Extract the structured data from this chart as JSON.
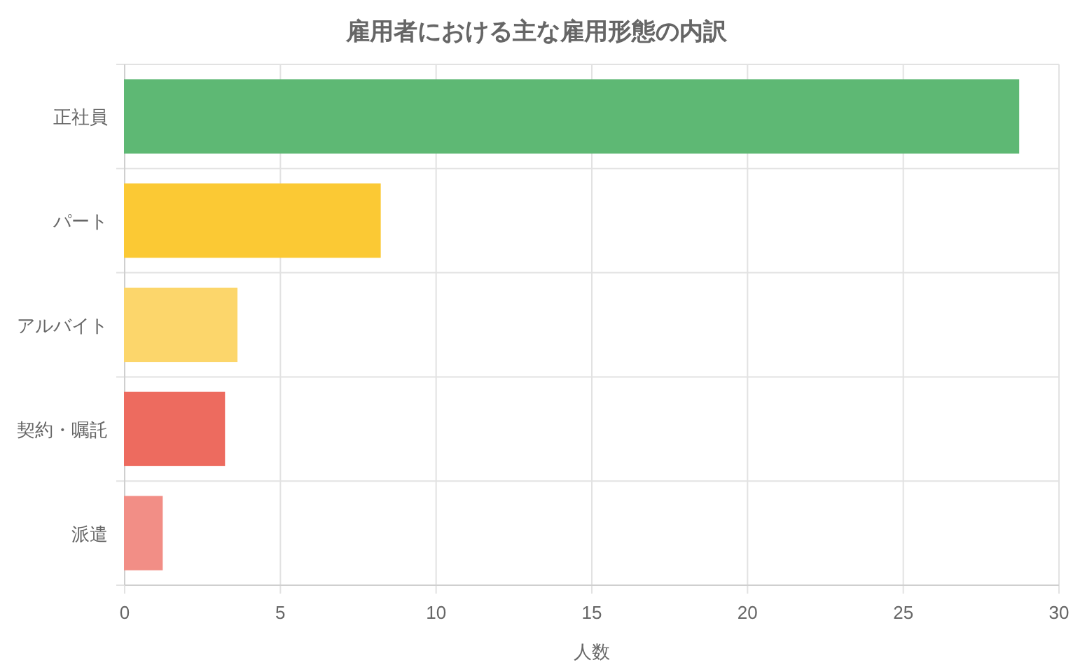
{
  "chart_data": {
    "type": "bar",
    "orientation": "horizontal",
    "title": "雇用者における主な雇用形態の内訳",
    "xlabel": "人数",
    "categories": [
      "正社員",
      "パート",
      "アルバイト",
      "契約・嘱託",
      "派遣"
    ],
    "values": [
      28.7,
      8.2,
      3.6,
      3.2,
      1.2
    ],
    "colors": [
      "#5eb874",
      "#fbc934",
      "#fcd66b",
      "#ed6b5f",
      "#f28e86"
    ],
    "xlim": [
      0,
      30
    ],
    "xticks": [
      0,
      5,
      10,
      15,
      20,
      25,
      30
    ],
    "grid": true
  }
}
